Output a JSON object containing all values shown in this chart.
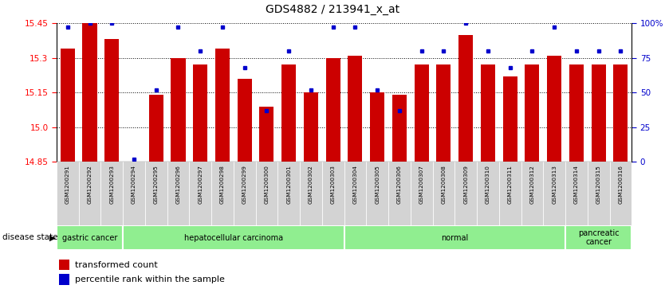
{
  "title": "GDS4882 / 213941_x_at",
  "samples": [
    "GSM1200291",
    "GSM1200292",
    "GSM1200293",
    "GSM1200294",
    "GSM1200295",
    "GSM1200296",
    "GSM1200297",
    "GSM1200298",
    "GSM1200299",
    "GSM1200300",
    "GSM1200301",
    "GSM1200302",
    "GSM1200303",
    "GSM1200304",
    "GSM1200305",
    "GSM1200306",
    "GSM1200307",
    "GSM1200308",
    "GSM1200309",
    "GSM1200310",
    "GSM1200311",
    "GSM1200312",
    "GSM1200313",
    "GSM1200314",
    "GSM1200315",
    "GSM1200316"
  ],
  "transformed_count": [
    15.34,
    15.45,
    15.38,
    14.83,
    15.14,
    15.3,
    15.27,
    15.34,
    15.21,
    15.09,
    15.27,
    15.15,
    15.3,
    15.31,
    15.15,
    15.14,
    15.27,
    15.27,
    15.4,
    15.27,
    15.22,
    15.27,
    15.31,
    15.27,
    15.27,
    15.27
  ],
  "percentile_rank": [
    97,
    100,
    100,
    2,
    52,
    97,
    80,
    97,
    68,
    37,
    80,
    52,
    97,
    97,
    52,
    37,
    80,
    80,
    100,
    80,
    68,
    80,
    97,
    80,
    80,
    80
  ],
  "group_boundaries": [
    {
      "label": "gastric cancer",
      "start": 0,
      "end": 3
    },
    {
      "label": "hepatocellular carcinoma",
      "start": 3,
      "end": 13
    },
    {
      "label": "normal",
      "start": 13,
      "end": 23
    },
    {
      "label": "pancreatic\ncancer",
      "start": 23,
      "end": 26
    }
  ],
  "ylim_left": [
    14.85,
    15.45
  ],
  "yticks_left": [
    14.85,
    15.0,
    15.15,
    15.3,
    15.45
  ],
  "ylim_right": [
    0,
    100
  ],
  "yticks_right": [
    0,
    25,
    50,
    75,
    100
  ],
  "bar_color": "#CC0000",
  "dot_color": "#0000CC",
  "bar_width": 0.65,
  "background_color": "#ffffff",
  "grid_color": "#000000",
  "green_color": "#90EE90",
  "gray_tick_bg": "#d3d3d3"
}
